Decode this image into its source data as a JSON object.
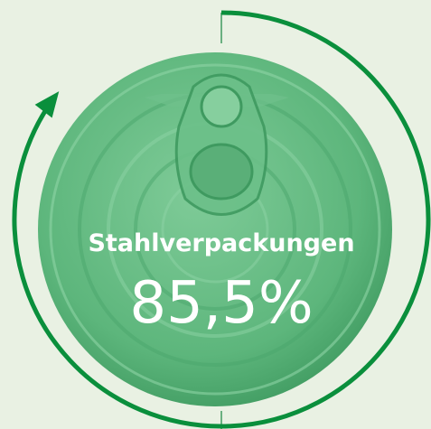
{
  "chart_data": {
    "type": "gauge",
    "title": "Stahlverpackungen",
    "values": [
      85.5
    ],
    "value_labels": [
      "85,5%"
    ],
    "ylim": [
      0,
      100
    ],
    "color": "#0a8f3c"
  }
}
